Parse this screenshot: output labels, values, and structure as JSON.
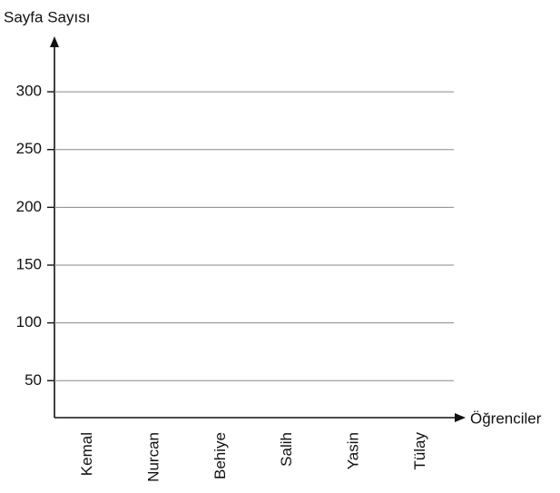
{
  "chart_data": {
    "type": "bar",
    "y_label": "Sayfa Sayısı",
    "x_label": "Öğrenciler",
    "categories": [
      "Kemal",
      "Nurcan",
      "Behiye",
      "Salih",
      "Yasin",
      "Tülay"
    ],
    "ylim": [
      18,
      348
    ],
    "yticks": [
      50,
      100,
      150,
      200,
      250,
      300
    ],
    "grid": true
  }
}
